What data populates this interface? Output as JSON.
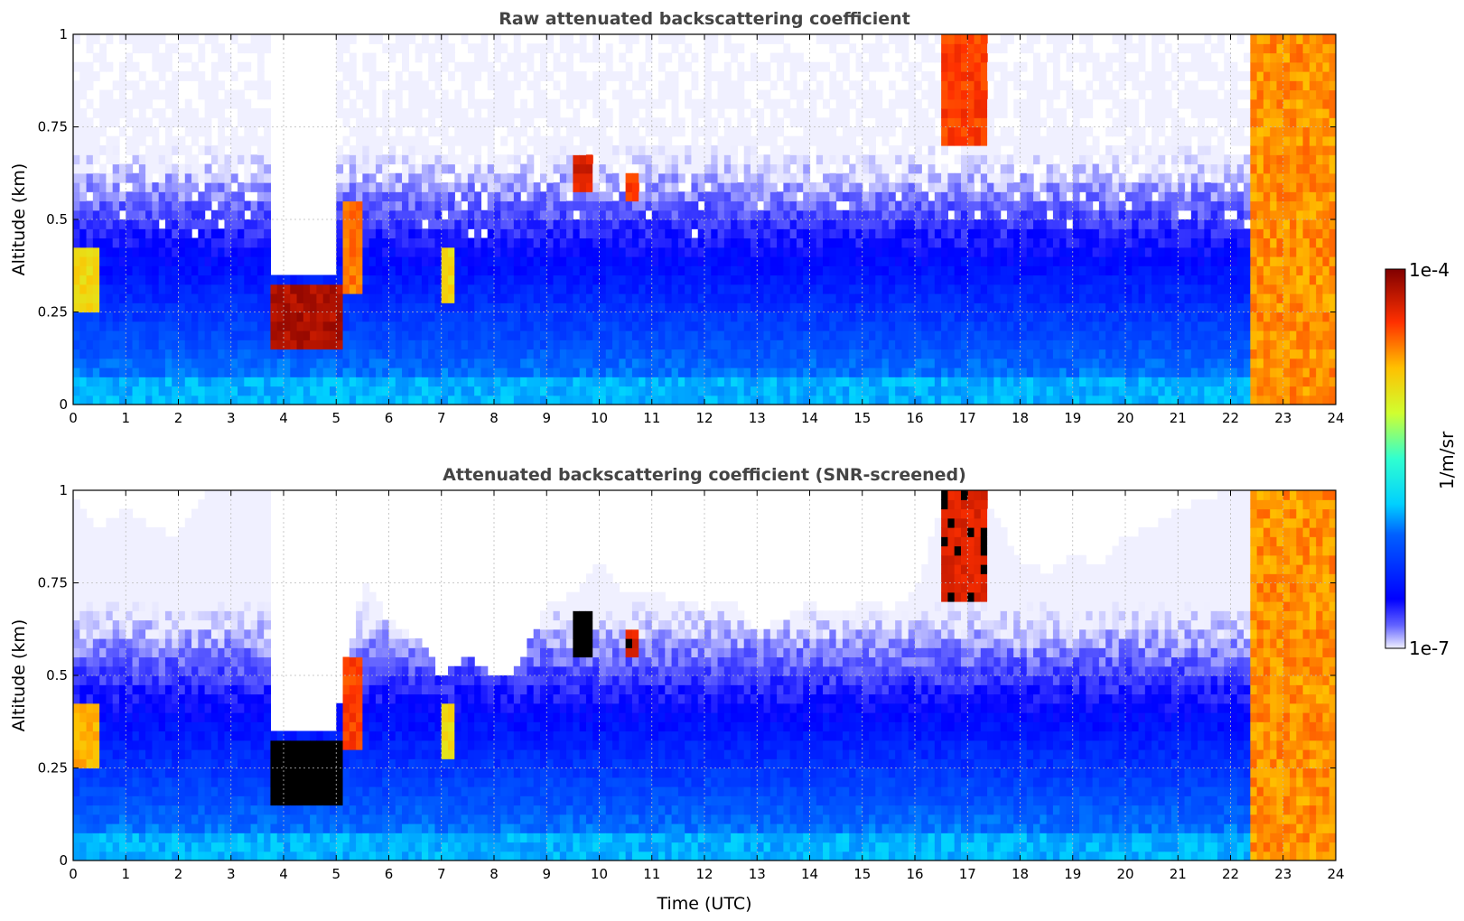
{
  "chart_data": [
    {
      "type": "heatmap",
      "title": "Raw attenuated backscattering coefficient",
      "xlabel": "",
      "ylabel": "Altitude (km)",
      "xlim": [
        0,
        24
      ],
      "ylim": [
        0,
        1
      ],
      "x_ticks": [
        0,
        1,
        2,
        3,
        4,
        5,
        6,
        7,
        8,
        9,
        10,
        11,
        12,
        13,
        14,
        15,
        16,
        17,
        18,
        19,
        20,
        21,
        22,
        23,
        24
      ],
      "y_ticks": [
        0,
        0.25,
        0.5,
        0.75,
        1
      ],
      "y_tick_labels": [
        "0",
        "0.25",
        "0.5",
        "0.75",
        "1"
      ],
      "grid": true,
      "colormap": "jet",
      "screened": false,
      "features": [
        {
          "kind": "cloud",
          "t0": 3.75,
          "t1": 5.15,
          "z0": 0.15,
          "z1": 0.33,
          "level": 0.95
        },
        {
          "kind": "cloud",
          "t0": 5.1,
          "t1": 5.5,
          "z0": 0.3,
          "z1": 0.55,
          "level": 0.8
        },
        {
          "kind": "cloud",
          "t0": 9.55,
          "t1": 9.85,
          "z0": 0.57,
          "z1": 0.67,
          "level": 0.9
        },
        {
          "kind": "cloud",
          "t0": 10.5,
          "t1": 10.75,
          "z0": 0.55,
          "z1": 0.62,
          "level": 0.85
        },
        {
          "kind": "cloud",
          "t0": 16.5,
          "t1": 17.4,
          "z0": 0.7,
          "z1": 1.0,
          "level": 0.85
        },
        {
          "kind": "cloud",
          "t0": 0.0,
          "t1": 0.5,
          "z0": 0.25,
          "z1": 0.43,
          "level": 0.7
        },
        {
          "kind": "cloud",
          "t0": 7.05,
          "t1": 7.3,
          "z0": 0.27,
          "z1": 0.42,
          "level": 0.7
        },
        {
          "kind": "cloud",
          "t0": 23.35,
          "t1": 23.45,
          "z0": 0.73,
          "z1": 0.8,
          "level": 0.9
        },
        {
          "kind": "cloud",
          "t0": 23.7,
          "t1": 23.9,
          "z0": 0.17,
          "z1": 0.3,
          "level": 0.9
        },
        {
          "kind": "fog",
          "t0": 22.4,
          "t1": 24.0,
          "z0": 0.0,
          "z1": 1.0,
          "level": 0.78
        },
        {
          "kind": "nodata",
          "t0": 3.75,
          "t1": 5.0,
          "z0": 0.35,
          "z1": 1.0
        }
      ]
    },
    {
      "type": "heatmap",
      "title": "Attenuated backscattering coefficient (SNR-screened)",
      "xlabel": "Time (UTC)",
      "ylabel": "Altitude (km)",
      "xlim": [
        0,
        24
      ],
      "ylim": [
        0,
        1
      ],
      "x_ticks": [
        0,
        1,
        2,
        3,
        4,
        5,
        6,
        7,
        8,
        9,
        10,
        11,
        12,
        13,
        14,
        15,
        16,
        17,
        18,
        19,
        20,
        21,
        22,
        23,
        24
      ],
      "y_ticks": [
        0,
        0.25,
        0.5,
        0.75,
        1
      ],
      "y_tick_labels": [
        "0",
        "0.25",
        "0.5",
        "0.75",
        "1"
      ],
      "grid": true,
      "colormap": "jet",
      "screened": true,
      "screen_top_km": [
        [
          0,
          0.98
        ],
        [
          0.5,
          0.9
        ],
        [
          1,
          0.95
        ],
        [
          1.5,
          0.9
        ],
        [
          2,
          0.88
        ],
        [
          2.5,
          0.99
        ],
        [
          3,
          1.0
        ],
        [
          3.7,
          1.0
        ],
        [
          3.8,
          0.45
        ],
        [
          4.5,
          0.35
        ],
        [
          5.0,
          0.37
        ],
        [
          5.5,
          0.75
        ],
        [
          6,
          0.65
        ],
        [
          6.5,
          0.6
        ],
        [
          7,
          0.5
        ],
        [
          7.5,
          0.55
        ],
        [
          8,
          0.5
        ],
        [
          8.5,
          0.52
        ],
        [
          9,
          0.7
        ],
        [
          9.5,
          0.72
        ],
        [
          10,
          0.8
        ],
        [
          10.5,
          0.72
        ],
        [
          11,
          0.73
        ],
        [
          11.5,
          0.7
        ],
        [
          12,
          0.68
        ],
        [
          12.5,
          0.7
        ],
        [
          13,
          0.62
        ],
        [
          13.5,
          0.65
        ],
        [
          14,
          0.7
        ],
        [
          14.5,
          0.66
        ],
        [
          15,
          0.7
        ],
        [
          15.5,
          0.68
        ],
        [
          16,
          0.72
        ],
        [
          16.5,
          0.95
        ],
        [
          17,
          1.0
        ],
        [
          17.5,
          0.95
        ],
        [
          18,
          0.8
        ],
        [
          18.5,
          0.78
        ],
        [
          19,
          0.82
        ],
        [
          19.5,
          0.8
        ],
        [
          20,
          0.88
        ],
        [
          20.5,
          0.9
        ],
        [
          21,
          0.95
        ],
        [
          22,
          1.0
        ],
        [
          24,
          1.0
        ]
      ],
      "features": [
        {
          "kind": "cloud",
          "t0": 3.75,
          "t1": 5.15,
          "z0": 0.15,
          "z1": 0.33,
          "level": 1.0
        },
        {
          "kind": "cloud",
          "t0": 5.1,
          "t1": 5.5,
          "z0": 0.3,
          "z1": 0.55,
          "level": 0.85
        },
        {
          "kind": "cloud",
          "t0": 9.55,
          "t1": 9.85,
          "z0": 0.55,
          "z1": 0.67,
          "level": 1.0
        },
        {
          "kind": "cloud",
          "t0": 10.5,
          "t1": 10.75,
          "z0": 0.55,
          "z1": 0.62,
          "level": 0.9
        },
        {
          "kind": "cloud",
          "t0": 16.5,
          "t1": 17.4,
          "z0": 0.7,
          "z1": 1.0,
          "level": 0.9
        },
        {
          "kind": "cloud",
          "t0": 0.0,
          "t1": 0.5,
          "z0": 0.25,
          "z1": 0.43,
          "level": 0.75
        },
        {
          "kind": "cloud",
          "t0": 7.05,
          "t1": 7.3,
          "z0": 0.27,
          "z1": 0.42,
          "level": 0.7
        },
        {
          "kind": "cloud",
          "t0": 23.35,
          "t1": 23.45,
          "z0": 0.73,
          "z1": 0.8,
          "level": 1.0
        },
        {
          "kind": "cloud",
          "t0": 23.7,
          "t1": 23.9,
          "z0": 0.17,
          "z1": 0.3,
          "level": 1.0
        },
        {
          "kind": "fog",
          "t0": 22.4,
          "t1": 24.0,
          "z0": 0.0,
          "z1": 1.0,
          "level": 0.78
        },
        {
          "kind": "nodata",
          "t0": 3.75,
          "t1": 5.0,
          "z0": 0.35,
          "z1": 1.0
        }
      ]
    }
  ],
  "colorbar": {
    "max_label": "1e-4",
    "min_label": "1e-7",
    "unit_label": "1/m/sr",
    "colormap": "jet"
  }
}
